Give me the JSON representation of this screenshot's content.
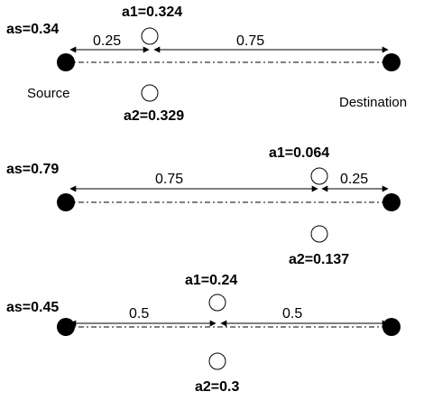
{
  "labels": {
    "source": "Source",
    "destination": "Destination"
  },
  "scenarios": [
    {
      "as_label": "as=0.34",
      "a1_label": "a1=0.324",
      "a2_label": "a2=0.329",
      "left_segment": "0.25",
      "right_segment": "0.75"
    },
    {
      "as_label": "as=0.79",
      "a1_label": "a1=0.064",
      "a2_label": "a2=0.137",
      "left_segment": "0.75",
      "right_segment": "0.25"
    },
    {
      "as_label": "as=0.45",
      "a1_label": "a1=0.24",
      "a2_label": "a2=0.3",
      "left_segment": "0.5",
      "right_segment": "0.5"
    }
  ],
  "colors": {
    "node": "#000000",
    "line": "#000000",
    "relay_fill": "#ffffff"
  }
}
